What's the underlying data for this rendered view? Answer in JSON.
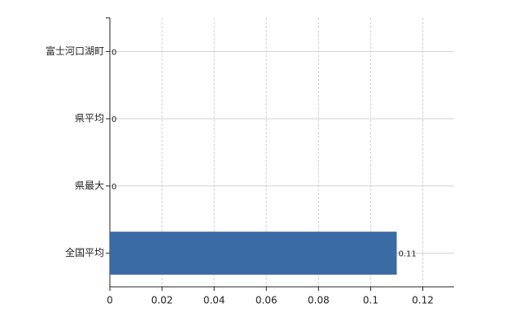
{
  "chart_data": {
    "type": "bar",
    "orientation": "horizontal",
    "categories": [
      "富士河口湖町",
      "県平均",
      "県最大",
      "全国平均"
    ],
    "values": [
      0,
      0,
      0,
      0.11
    ],
    "color": "#3b6ba5",
    "xlim": [
      0,
      0.132
    ],
    "xticks": [
      0,
      0.02,
      0.04,
      0.06,
      0.08,
      0.1,
      0.12
    ],
    "grid": true
  }
}
